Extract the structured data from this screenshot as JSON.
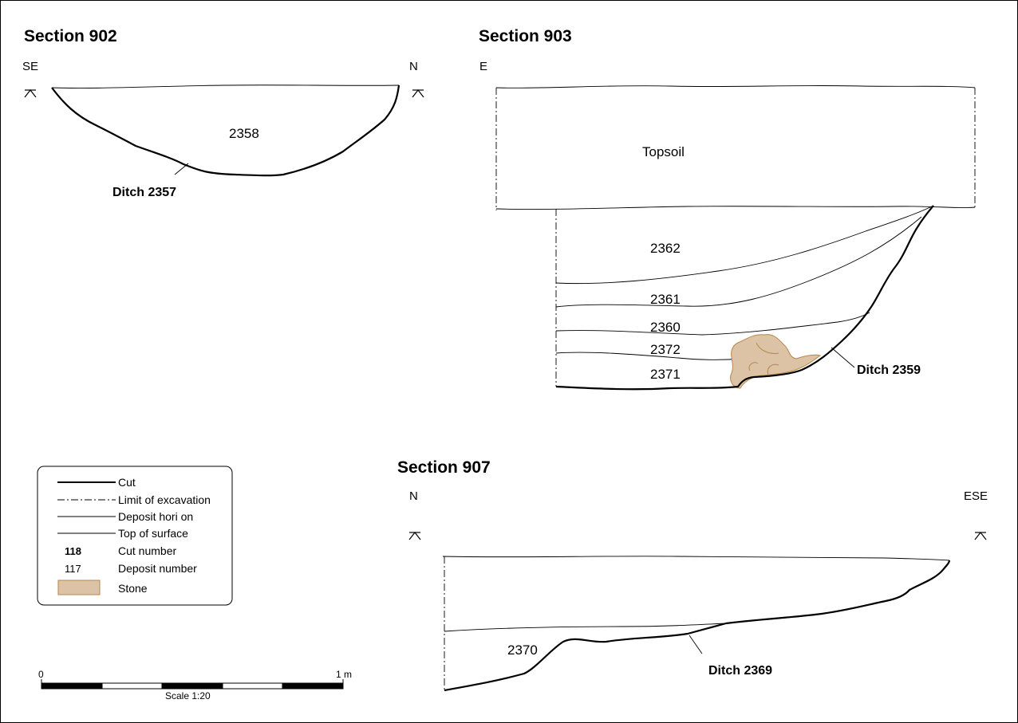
{
  "sections": {
    "s902": {
      "title": "Section 902",
      "left_orient": "SE",
      "right_orient": "N",
      "deposits": [
        "2358"
      ],
      "cut": "Ditch 2357"
    },
    "s903": {
      "title": "Section 903",
      "left_orient": "E",
      "topsoil": "Topsoil",
      "deposits": [
        "2362",
        "2361",
        "2360",
        "2372",
        "2371"
      ],
      "cut": "Ditch 2359"
    },
    "s907": {
      "title": "Section 907",
      "left_orient": "N",
      "right_orient": "ESE",
      "deposits": [
        "2370"
      ],
      "cut": "Ditch 2369"
    }
  },
  "legend": {
    "items": [
      {
        "symbol": "line-thick",
        "label": "Cut"
      },
      {
        "symbol": "line-dashdot",
        "label": "Limit of excavation"
      },
      {
        "symbol": "line-thin",
        "label": "Deposit hori  on"
      },
      {
        "symbol": "line-thin",
        "label": "Top of surface"
      },
      {
        "symbol": "text-bold",
        "code": "118",
        "label": "Cut number"
      },
      {
        "symbol": "text-normal",
        "code": "117",
        "label": "Deposit number"
      },
      {
        "symbol": "swatch",
        "label": "Stone"
      }
    ],
    "stone_color": "#dcc3a6",
    "stone_border": "#b8864a"
  },
  "scale_bar": {
    "start_label": "0",
    "end_label": "1 m",
    "caption": "Scale 1:20"
  }
}
